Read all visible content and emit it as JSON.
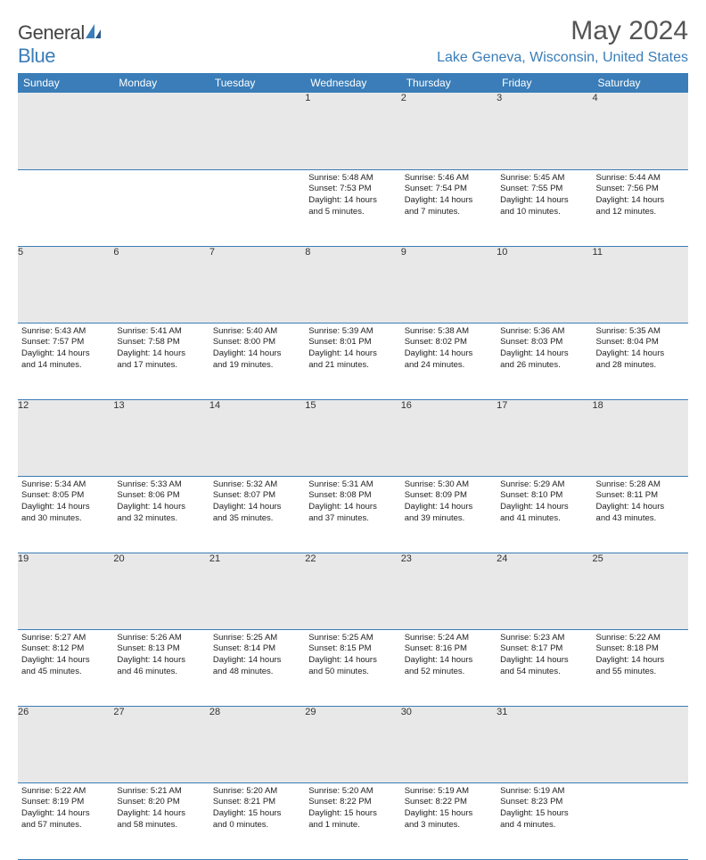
{
  "brand": "GeneralBlue",
  "brand_part1": "General",
  "brand_part2": "Blue",
  "title": "May 2024",
  "location": "Lake Geneva, Wisconsin, United States",
  "colors": {
    "accent": "#3a7db8",
    "header_row_bg": "#3a7db8",
    "daynum_bg": "#e8e8e8",
    "text": "#333333",
    "bg": "#ffffff"
  },
  "typography": {
    "title_fontsize": 30,
    "location_fontsize": 16,
    "header_fontsize": 12,
    "cell_fontsize": 9.5
  },
  "weekdays": [
    "Sunday",
    "Monday",
    "Tuesday",
    "Wednesday",
    "Thursday",
    "Friday",
    "Saturday"
  ],
  "weeks": [
    [
      null,
      null,
      null,
      {
        "n": "1",
        "sr": "Sunrise: 5:48 AM",
        "ss": "Sunset: 7:53 PM",
        "d1": "Daylight: 14 hours",
        "d2": "and 5 minutes."
      },
      {
        "n": "2",
        "sr": "Sunrise: 5:46 AM",
        "ss": "Sunset: 7:54 PM",
        "d1": "Daylight: 14 hours",
        "d2": "and 7 minutes."
      },
      {
        "n": "3",
        "sr": "Sunrise: 5:45 AM",
        "ss": "Sunset: 7:55 PM",
        "d1": "Daylight: 14 hours",
        "d2": "and 10 minutes."
      },
      {
        "n": "4",
        "sr": "Sunrise: 5:44 AM",
        "ss": "Sunset: 7:56 PM",
        "d1": "Daylight: 14 hours",
        "d2": "and 12 minutes."
      }
    ],
    [
      {
        "n": "5",
        "sr": "Sunrise: 5:43 AM",
        "ss": "Sunset: 7:57 PM",
        "d1": "Daylight: 14 hours",
        "d2": "and 14 minutes."
      },
      {
        "n": "6",
        "sr": "Sunrise: 5:41 AM",
        "ss": "Sunset: 7:58 PM",
        "d1": "Daylight: 14 hours",
        "d2": "and 17 minutes."
      },
      {
        "n": "7",
        "sr": "Sunrise: 5:40 AM",
        "ss": "Sunset: 8:00 PM",
        "d1": "Daylight: 14 hours",
        "d2": "and 19 minutes."
      },
      {
        "n": "8",
        "sr": "Sunrise: 5:39 AM",
        "ss": "Sunset: 8:01 PM",
        "d1": "Daylight: 14 hours",
        "d2": "and 21 minutes."
      },
      {
        "n": "9",
        "sr": "Sunrise: 5:38 AM",
        "ss": "Sunset: 8:02 PM",
        "d1": "Daylight: 14 hours",
        "d2": "and 24 minutes."
      },
      {
        "n": "10",
        "sr": "Sunrise: 5:36 AM",
        "ss": "Sunset: 8:03 PM",
        "d1": "Daylight: 14 hours",
        "d2": "and 26 minutes."
      },
      {
        "n": "11",
        "sr": "Sunrise: 5:35 AM",
        "ss": "Sunset: 8:04 PM",
        "d1": "Daylight: 14 hours",
        "d2": "and 28 minutes."
      }
    ],
    [
      {
        "n": "12",
        "sr": "Sunrise: 5:34 AM",
        "ss": "Sunset: 8:05 PM",
        "d1": "Daylight: 14 hours",
        "d2": "and 30 minutes."
      },
      {
        "n": "13",
        "sr": "Sunrise: 5:33 AM",
        "ss": "Sunset: 8:06 PM",
        "d1": "Daylight: 14 hours",
        "d2": "and 32 minutes."
      },
      {
        "n": "14",
        "sr": "Sunrise: 5:32 AM",
        "ss": "Sunset: 8:07 PM",
        "d1": "Daylight: 14 hours",
        "d2": "and 35 minutes."
      },
      {
        "n": "15",
        "sr": "Sunrise: 5:31 AM",
        "ss": "Sunset: 8:08 PM",
        "d1": "Daylight: 14 hours",
        "d2": "and 37 minutes."
      },
      {
        "n": "16",
        "sr": "Sunrise: 5:30 AM",
        "ss": "Sunset: 8:09 PM",
        "d1": "Daylight: 14 hours",
        "d2": "and 39 minutes."
      },
      {
        "n": "17",
        "sr": "Sunrise: 5:29 AM",
        "ss": "Sunset: 8:10 PM",
        "d1": "Daylight: 14 hours",
        "d2": "and 41 minutes."
      },
      {
        "n": "18",
        "sr": "Sunrise: 5:28 AM",
        "ss": "Sunset: 8:11 PM",
        "d1": "Daylight: 14 hours",
        "d2": "and 43 minutes."
      }
    ],
    [
      {
        "n": "19",
        "sr": "Sunrise: 5:27 AM",
        "ss": "Sunset: 8:12 PM",
        "d1": "Daylight: 14 hours",
        "d2": "and 45 minutes."
      },
      {
        "n": "20",
        "sr": "Sunrise: 5:26 AM",
        "ss": "Sunset: 8:13 PM",
        "d1": "Daylight: 14 hours",
        "d2": "and 46 minutes."
      },
      {
        "n": "21",
        "sr": "Sunrise: 5:25 AM",
        "ss": "Sunset: 8:14 PM",
        "d1": "Daylight: 14 hours",
        "d2": "and 48 minutes."
      },
      {
        "n": "22",
        "sr": "Sunrise: 5:25 AM",
        "ss": "Sunset: 8:15 PM",
        "d1": "Daylight: 14 hours",
        "d2": "and 50 minutes."
      },
      {
        "n": "23",
        "sr": "Sunrise: 5:24 AM",
        "ss": "Sunset: 8:16 PM",
        "d1": "Daylight: 14 hours",
        "d2": "and 52 minutes."
      },
      {
        "n": "24",
        "sr": "Sunrise: 5:23 AM",
        "ss": "Sunset: 8:17 PM",
        "d1": "Daylight: 14 hours",
        "d2": "and 54 minutes."
      },
      {
        "n": "25",
        "sr": "Sunrise: 5:22 AM",
        "ss": "Sunset: 8:18 PM",
        "d1": "Daylight: 14 hours",
        "d2": "and 55 minutes."
      }
    ],
    [
      {
        "n": "26",
        "sr": "Sunrise: 5:22 AM",
        "ss": "Sunset: 8:19 PM",
        "d1": "Daylight: 14 hours",
        "d2": "and 57 minutes."
      },
      {
        "n": "27",
        "sr": "Sunrise: 5:21 AM",
        "ss": "Sunset: 8:20 PM",
        "d1": "Daylight: 14 hours",
        "d2": "and 58 minutes."
      },
      {
        "n": "28",
        "sr": "Sunrise: 5:20 AM",
        "ss": "Sunset: 8:21 PM",
        "d1": "Daylight: 15 hours",
        "d2": "and 0 minutes."
      },
      {
        "n": "29",
        "sr": "Sunrise: 5:20 AM",
        "ss": "Sunset: 8:22 PM",
        "d1": "Daylight: 15 hours",
        "d2": "and 1 minute."
      },
      {
        "n": "30",
        "sr": "Sunrise: 5:19 AM",
        "ss": "Sunset: 8:22 PM",
        "d1": "Daylight: 15 hours",
        "d2": "and 3 minutes."
      },
      {
        "n": "31",
        "sr": "Sunrise: 5:19 AM",
        "ss": "Sunset: 8:23 PM",
        "d1": "Daylight: 15 hours",
        "d2": "and 4 minutes."
      },
      null
    ]
  ]
}
